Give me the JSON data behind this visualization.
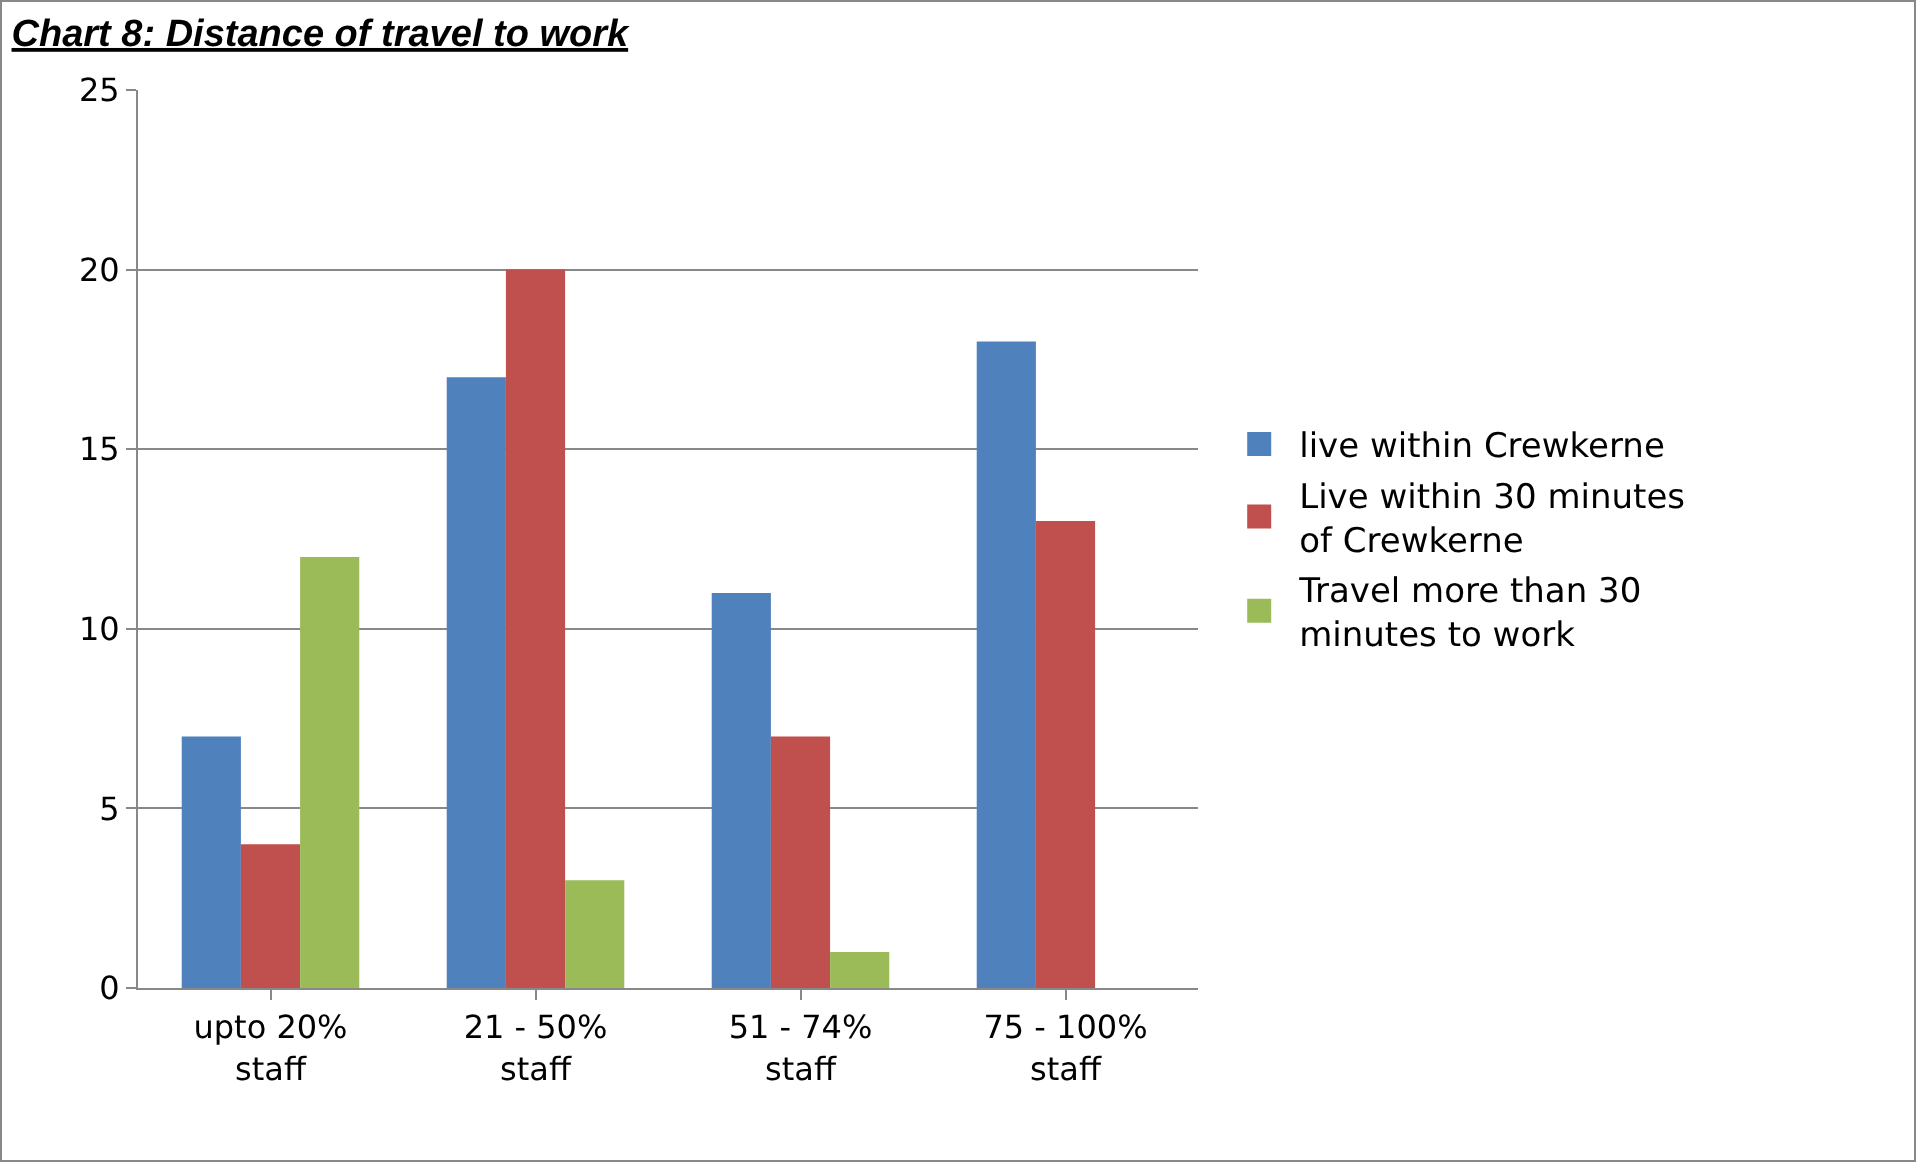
{
  "chart_data": {
    "type": "bar",
    "title": "Chart 8: Distance of travel to work",
    "categories": [
      "upto 20% staff",
      "21 - 50% staff",
      "51 - 74% staff",
      "75 - 100% staff"
    ],
    "series": [
      {
        "name": "live within Crewkerne",
        "color": "#4f81bd",
        "values": [
          7,
          17,
          11,
          18
        ]
      },
      {
        "name": "Live within 30 minutes of Crewkerne",
        "color": "#c0504d",
        "values": [
          4,
          20,
          7,
          13
        ]
      },
      {
        "name": "Travel more than 30 minutes to work",
        "color": "#9bbb59",
        "values": [
          12,
          3,
          1,
          null
        ]
      }
    ],
    "ylim": [
      0,
      25
    ],
    "yticks": [
      0,
      5,
      10,
      15,
      20,
      25
    ],
    "grid": "y",
    "legend": "right"
  }
}
